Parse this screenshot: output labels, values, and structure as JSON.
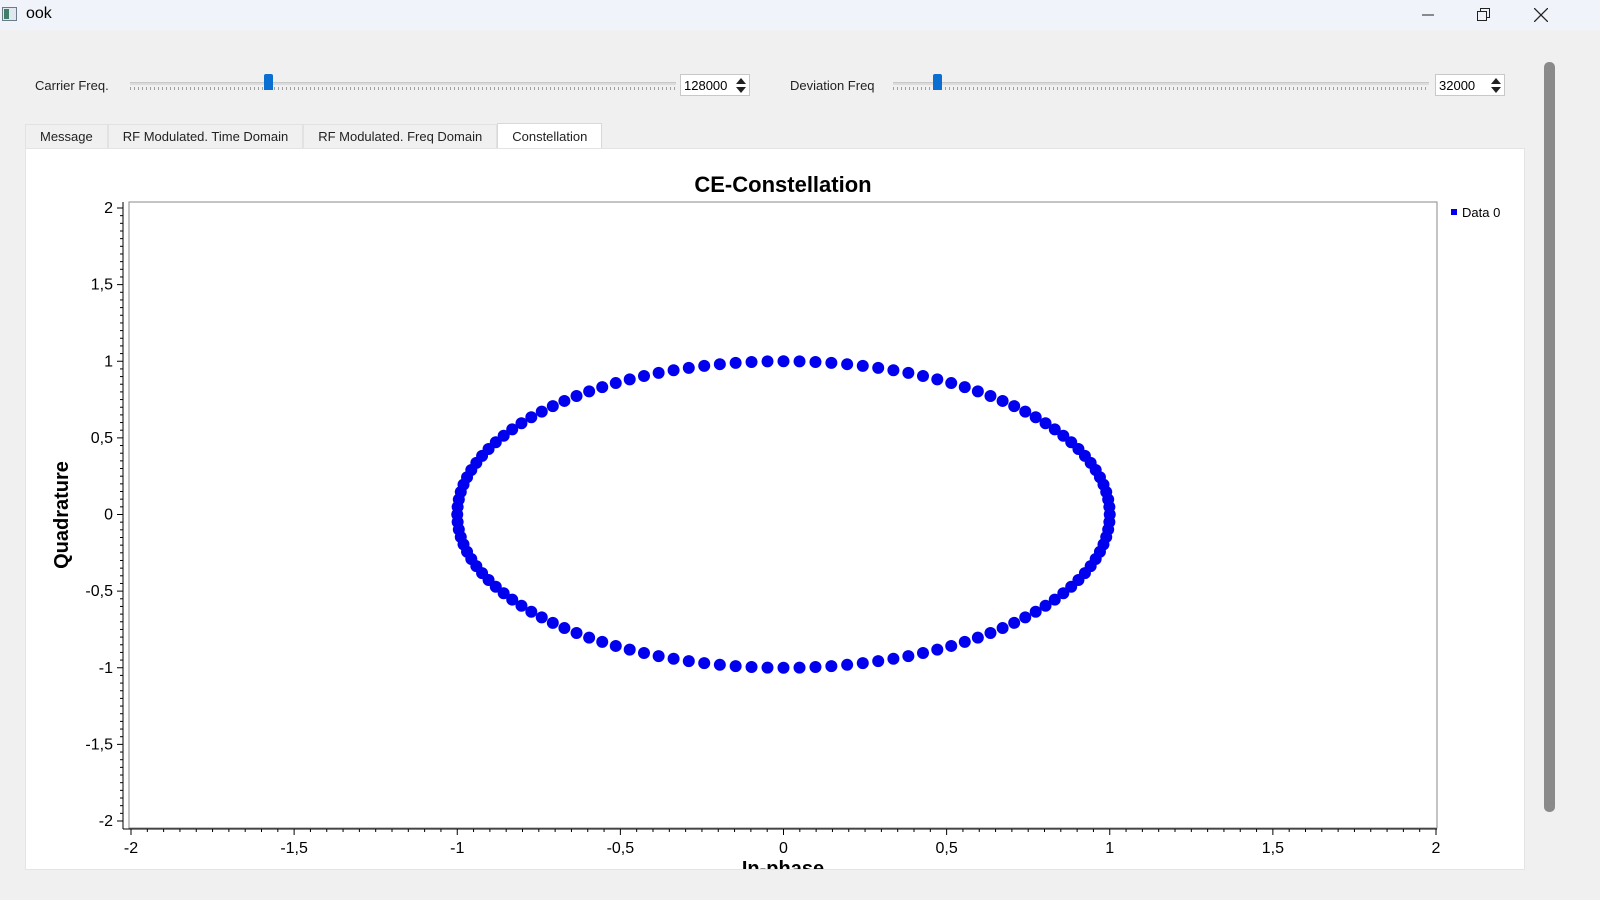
{
  "window": {
    "title": "ook",
    "icon": "app-window-icon",
    "controls": [
      "minimize-icon",
      "restore-icon",
      "close-icon"
    ]
  },
  "controls": {
    "carrier": {
      "label": "Carrier Freq.",
      "value": "128000",
      "slider_fraction": 0.25
    },
    "deviation": {
      "label": "Deviation Freq",
      "value": "32000",
      "slider_fraction": 0.075
    }
  },
  "tabs": [
    {
      "label": "Message",
      "active": false
    },
    {
      "label": "RF Modulated. Time Domain",
      "active": false
    },
    {
      "label": "RF Modulated. Freq Domain",
      "active": false
    },
    {
      "label": "Constellation",
      "active": true
    }
  ],
  "colors": {
    "accent": "#0a6fd1",
    "series": "#0000ee"
  },
  "chart_data": {
    "type": "scatter",
    "title": "CE-Constellation",
    "xlabel": "In-phase",
    "ylabel": "Quadrature",
    "xlim": [
      -2,
      2
    ],
    "ylim": [
      -2,
      2
    ],
    "xticks": [
      "-2",
      "-1,5",
      "-1",
      "-0,5",
      "0",
      "0,5",
      "1",
      "1,5",
      "2"
    ],
    "yticks": [
      "2",
      "1,5",
      "1",
      "0,5",
      "0",
      "-0,5",
      "-1",
      "-1,5",
      "-2"
    ],
    "grid": false,
    "legend": "top-right",
    "series": [
      {
        "name": "Data 0",
        "shape": "unit circle: I = cos(θ), Q = sin(θ)",
        "points": 128,
        "x": [
          1.0,
          0.9988,
          0.9952,
          0.9892,
          0.9808,
          0.97,
          0.9569,
          0.9415,
          0.9239,
          0.904,
          0.8819,
          0.8577,
          0.8315,
          0.8032,
          0.773,
          0.741,
          0.7071,
          0.6716,
          0.6344,
          0.5957,
          0.5556,
          0.5141,
          0.4714,
          0.4276,
          0.3827,
          0.3369,
          0.2903,
          0.243,
          0.1951,
          0.1467,
          0.098,
          0.0491,
          0.0,
          -0.0491,
          -0.098,
          -0.1467,
          -0.1951,
          -0.243,
          -0.2903,
          -0.3369,
          -0.3827,
          -0.4276,
          -0.4714,
          -0.5141,
          -0.5556,
          -0.5957,
          -0.6344,
          -0.6716,
          -0.7071,
          -0.741,
          -0.773,
          -0.8032,
          -0.8315,
          -0.8577,
          -0.8819,
          -0.904,
          -0.9239,
          -0.9415,
          -0.9569,
          -0.97,
          -0.9808,
          -0.9892,
          -0.9952,
          -0.9988,
          -1.0,
          -0.9988,
          -0.9952,
          -0.9892,
          -0.9808,
          -0.97,
          -0.9569,
          -0.9415,
          -0.9239,
          -0.904,
          -0.8819,
          -0.8577,
          -0.8315,
          -0.8032,
          -0.773,
          -0.741,
          -0.7071,
          -0.6716,
          -0.6344,
          -0.5957,
          -0.5556,
          -0.5141,
          -0.4714,
          -0.4276,
          -0.3827,
          -0.3369,
          -0.2903,
          -0.243,
          -0.1951,
          -0.1467,
          -0.098,
          -0.0491,
          0.0,
          0.0491,
          0.098,
          0.1467,
          0.1951,
          0.243,
          0.2903,
          0.3369,
          0.3827,
          0.4276,
          0.4714,
          0.5141,
          0.5556,
          0.5957,
          0.6344,
          0.6716,
          0.7071,
          0.741,
          0.773,
          0.8032,
          0.8315,
          0.8577,
          0.8819,
          0.904,
          0.9239,
          0.9415,
          0.9569,
          0.97,
          0.9808,
          0.9892,
          0.9952,
          0.9988
        ],
        "y": [
          0.0,
          0.0491,
          0.098,
          0.1467,
          0.1951,
          0.243,
          0.2903,
          0.3369,
          0.3827,
          0.4276,
          0.4714,
          0.5141,
          0.5556,
          0.5957,
          0.6344,
          0.6716,
          0.7071,
          0.741,
          0.773,
          0.8032,
          0.8315,
          0.8577,
          0.8819,
          0.904,
          0.9239,
          0.9415,
          0.9569,
          0.97,
          0.9808,
          0.9892,
          0.9952,
          0.9988,
          1.0,
          0.9988,
          0.9952,
          0.9892,
          0.9808,
          0.97,
          0.9569,
          0.9415,
          0.9239,
          0.904,
          0.8819,
          0.8577,
          0.8315,
          0.8032,
          0.773,
          0.741,
          0.7071,
          0.6716,
          0.6344,
          0.5957,
          0.5556,
          0.5141,
          0.4714,
          0.4276,
          0.3827,
          0.3369,
          0.2903,
          0.243,
          0.1951,
          0.1467,
          0.098,
          0.0491,
          0.0,
          -0.0491,
          -0.098,
          -0.1467,
          -0.1951,
          -0.243,
          -0.2903,
          -0.3369,
          -0.3827,
          -0.4276,
          -0.4714,
          -0.5141,
          -0.5556,
          -0.5957,
          -0.6344,
          -0.6716,
          -0.7071,
          -0.741,
          -0.773,
          -0.8032,
          -0.8315,
          -0.8577,
          -0.8819,
          -0.904,
          -0.9239,
          -0.9415,
          -0.9569,
          -0.97,
          -0.9808,
          -0.9892,
          -0.9952,
          -0.9988,
          -1.0,
          -0.9988,
          -0.9952,
          -0.9892,
          -0.9808,
          -0.97,
          -0.9569,
          -0.9415,
          -0.9239,
          -0.904,
          -0.8819,
          -0.8577,
          -0.8315,
          -0.8032,
          -0.773,
          -0.741,
          -0.7071,
          -0.6716,
          -0.6344,
          -0.5957,
          -0.5556,
          -0.5141,
          -0.4714,
          -0.4276,
          -0.3827,
          -0.3369,
          -0.2903,
          -0.243,
          -0.1951,
          -0.1467,
          -0.098,
          -0.0491
        ]
      }
    ]
  }
}
